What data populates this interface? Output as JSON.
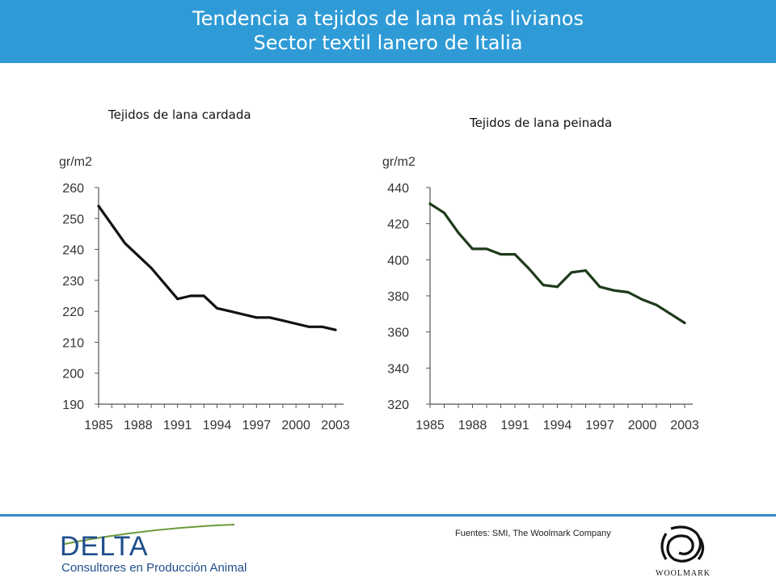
{
  "header": {
    "title_line1": "Tendencia a tejidos de lana más livianos",
    "title_line2": "Sector textil lanero de Italia"
  },
  "footer": {
    "source": "Fuentes: SMI, The Woolmark Company",
    "delta_logo_word": "DELTA",
    "delta_logo_tagline": "Consultores en Producción Animal",
    "woolmark_logo_word": "WOOLMARK"
  },
  "colors": {
    "header_bg": "#2f9bd6",
    "series1": "#111111",
    "series2": "#1f3a1c",
    "logo_blue": "#1f4e8c",
    "logo_green": "#6c9a3a"
  },
  "chart_data": [
    {
      "type": "line",
      "title": "Tejidos de lana cardada",
      "ylabel": "gr/m2",
      "ylim": [
        190,
        260
      ],
      "yticks": [
        "190",
        "200",
        "210",
        "220",
        "230",
        "240",
        "250",
        "260"
      ],
      "xlabels": [
        "1985",
        "1988",
        "1991",
        "1994",
        "1997",
        "2000",
        "2003"
      ],
      "x": [
        1985,
        1986,
        1987,
        1988,
        1989,
        1990,
        1991,
        1992,
        1993,
        1994,
        1995,
        1996,
        1997,
        1998,
        1999,
        2000,
        2001,
        2002,
        2003
      ],
      "values": [
        254,
        248,
        242,
        238,
        234,
        229,
        224,
        225,
        225,
        221,
        220,
        219,
        218,
        218,
        217,
        216,
        215,
        215,
        214
      ]
    },
    {
      "type": "line",
      "title": "Tejidos de lana peinada",
      "ylabel": "gr/m2",
      "ylim": [
        320,
        440
      ],
      "yticks": [
        "320",
        "340",
        "360",
        "380",
        "400",
        "420",
        "440"
      ],
      "xlabels": [
        "1985",
        "1988",
        "1991",
        "1994",
        "1997",
        "2000",
        "2003"
      ],
      "x": [
        1985,
        1986,
        1987,
        1988,
        1989,
        1990,
        1991,
        1992,
        1993,
        1994,
        1995,
        1996,
        1997,
        1998,
        1999,
        2000,
        2001,
        2002,
        2003
      ],
      "values": [
        431,
        426,
        415,
        406,
        406,
        403,
        403,
        395,
        386,
        385,
        393,
        394,
        385,
        383,
        382,
        378,
        375,
        370,
        365
      ]
    }
  ]
}
